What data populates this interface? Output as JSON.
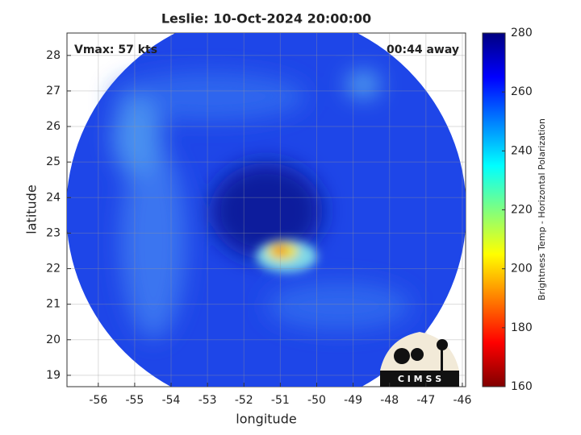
{
  "chart_data": {
    "type": "map",
    "title": "Leslie: 10-Oct-2024 20:00:00",
    "annotations": {
      "left": "Vmax: 57 kts",
      "right": "00:44 away"
    },
    "xlabel": "longitude",
    "ylabel": "latitude",
    "xlim": [
      -56.86,
      -45.91
    ],
    "xticks": [
      -56,
      -55,
      -54,
      -53,
      -52,
      -51,
      -50,
      -49,
      -48,
      -47,
      -46
    ],
    "ylim": [
      18.68,
      28.63
    ],
    "yticks": [
      19,
      20,
      21,
      22,
      23,
      24,
      25,
      26,
      27,
      28
    ],
    "grid": true,
    "colorbar": {
      "label": "Brightness Temp - Horizontal Polarization",
      "clim": [
        160,
        280
      ],
      "ticks": [
        160,
        180,
        200,
        220,
        240,
        260,
        280
      ],
      "colormap": "jet"
    },
    "logo": "C I M S S"
  }
}
